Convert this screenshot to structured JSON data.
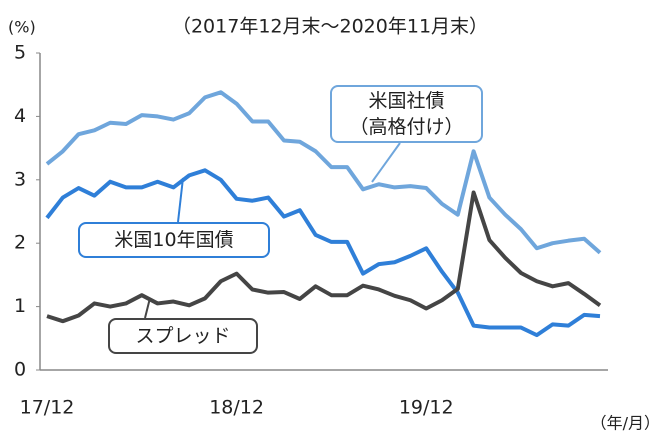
{
  "chart_data": {
    "type": "line",
    "title": "（2017年12月末～2020年11月末）",
    "y_unit_label": "(%)",
    "x_unit_label": "（年/月）",
    "categories": [
      "17/12",
      null,
      null,
      null,
      null,
      null,
      null,
      null,
      null,
      null,
      null,
      null,
      "18/12",
      null,
      null,
      null,
      null,
      null,
      null,
      null,
      null,
      null,
      null,
      null,
      "19/12",
      null,
      null,
      null,
      null,
      null,
      null,
      null,
      null,
      null,
      null,
      null
    ],
    "ylim": [
      0,
      5
    ],
    "yticks": [
      0,
      1,
      2,
      3,
      4,
      5
    ],
    "grid": false,
    "legend": "callout",
    "series": [
      {
        "name": "米国社債\n（高格付け）",
        "color": "#6fa6dc",
        "values": [
          3.25,
          3.45,
          3.72,
          3.78,
          3.9,
          3.88,
          4.02,
          4.0,
          3.95,
          4.05,
          4.3,
          4.38,
          4.2,
          3.92,
          3.92,
          3.62,
          3.6,
          3.45,
          3.2,
          3.2,
          2.85,
          2.93,
          2.88,
          2.9,
          2.87,
          2.62,
          2.45,
          3.45,
          2.72,
          2.45,
          2.22,
          1.92,
          2.0,
          2.04,
          2.07,
          1.85
        ]
      },
      {
        "name": "米国10年国債",
        "color": "#2f7fd8",
        "values": [
          2.4,
          2.72,
          2.87,
          2.75,
          2.97,
          2.88,
          2.88,
          2.97,
          2.88,
          3.07,
          3.15,
          3.0,
          2.7,
          2.67,
          2.72,
          2.42,
          2.52,
          2.13,
          2.02,
          2.02,
          1.52,
          1.67,
          1.7,
          1.8,
          1.92,
          1.55,
          1.22,
          0.7,
          0.67,
          0.67,
          0.67,
          0.55,
          0.72,
          0.7,
          0.87,
          0.85
        ]
      },
      {
        "name": "スプレッド",
        "color": "#454545",
        "values": [
          0.85,
          0.77,
          0.86,
          1.05,
          1.0,
          1.05,
          1.18,
          1.05,
          1.08,
          1.02,
          1.13,
          1.4,
          1.52,
          1.27,
          1.22,
          1.23,
          1.12,
          1.32,
          1.18,
          1.18,
          1.33,
          1.27,
          1.17,
          1.1,
          0.97,
          1.1,
          1.28,
          2.8,
          2.05,
          1.77,
          1.53,
          1.4,
          1.32,
          1.37,
          1.2,
          1.02
        ]
      }
    ]
  }
}
